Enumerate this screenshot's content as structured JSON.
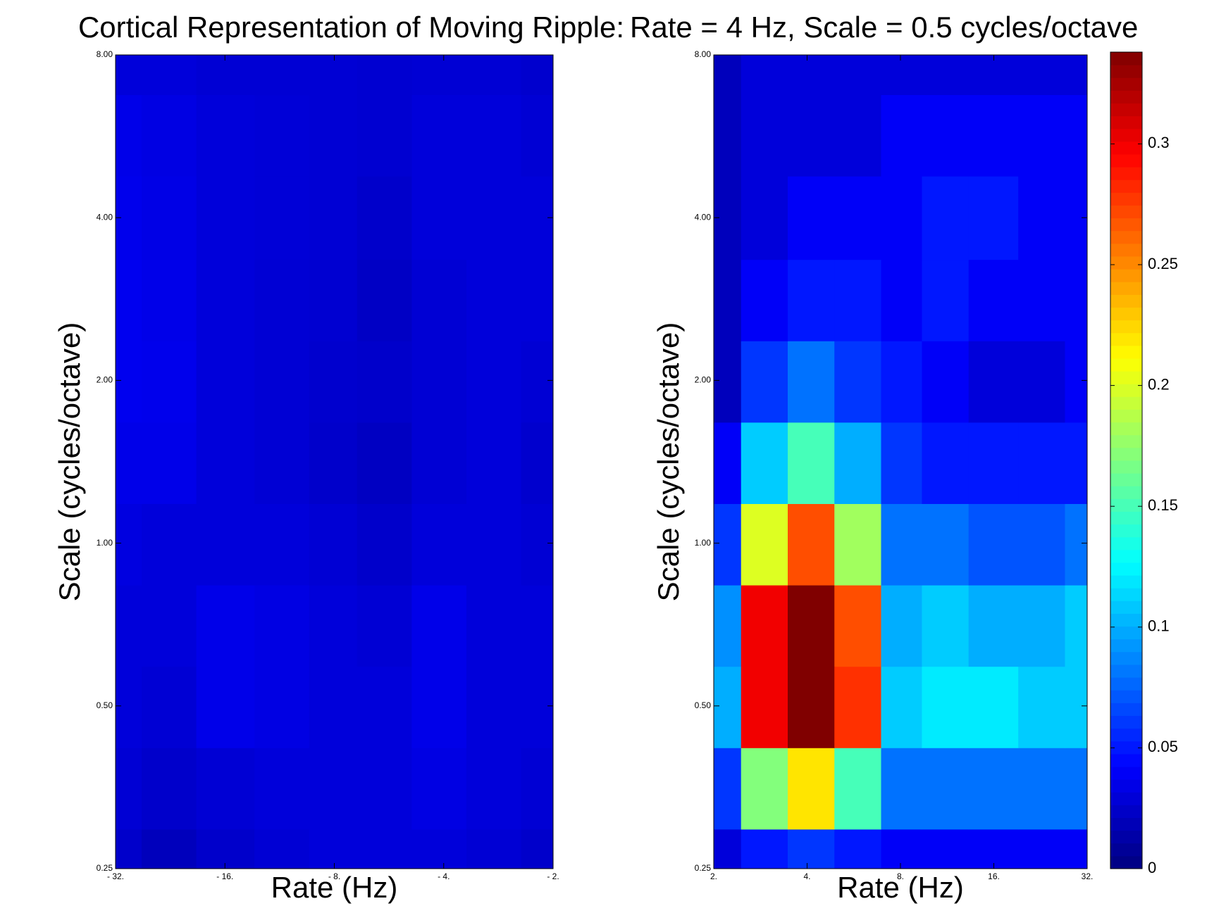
{
  "chart_data": [
    {
      "type": "heatmap",
      "title": "Cortical Representation of Moving Ripple:",
      "xlabel": "Rate (Hz)",
      "ylabel": "Scale (cycles/octave)",
      "xscale": "log",
      "yscale": "log",
      "xlim": [
        -32,
        -2
      ],
      "ylim": [
        0.25,
        8
      ],
      "xticks": [
        {
          "value": -32,
          "label": "- 32."
        },
        {
          "value": -16,
          "label": "- 16."
        },
        {
          "value": -8,
          "label": "- 8."
        },
        {
          "value": -4,
          "label": "- 4."
        },
        {
          "value": -2,
          "label": "- 2."
        }
      ],
      "yticks": [
        {
          "value": 0.25,
          "label": "0.25"
        },
        {
          "value": 0.5,
          "label": "0.50"
        },
        {
          "value": 1,
          "label": "1.00"
        },
        {
          "value": 2,
          "label": "2.00"
        },
        {
          "value": 4,
          "label": "4.00"
        },
        {
          "value": 8,
          "label": "8.00"
        }
      ],
      "x": [
        -32,
        -23,
        -16,
        -11,
        -8,
        -6,
        -4,
        -3,
        -2
      ],
      "y": [
        0.25,
        0.35,
        0.5,
        0.7,
        1,
        1.4,
        2,
        2.8,
        4,
        5.7,
        8
      ],
      "z": [
        [
          0.025,
          0.02,
          0.025,
          0.028,
          0.03,
          0.03,
          0.03,
          0.028,
          0.025
        ],
        [
          0.028,
          0.025,
          0.028,
          0.03,
          0.03,
          0.03,
          0.033,
          0.03,
          0.028
        ],
        [
          0.03,
          0.028,
          0.035,
          0.033,
          0.03,
          0.03,
          0.035,
          0.03,
          0.03
        ],
        [
          0.03,
          0.03,
          0.035,
          0.033,
          0.03,
          0.028,
          0.035,
          0.03,
          0.03
        ],
        [
          0.032,
          0.03,
          0.03,
          0.03,
          0.028,
          0.025,
          0.03,
          0.03,
          0.028
        ],
        [
          0.035,
          0.035,
          0.03,
          0.028,
          0.025,
          0.022,
          0.028,
          0.03,
          0.026
        ],
        [
          0.037,
          0.036,
          0.03,
          0.028,
          0.026,
          0.025,
          0.028,
          0.03,
          0.028
        ],
        [
          0.037,
          0.035,
          0.03,
          0.028,
          0.027,
          0.023,
          0.028,
          0.03,
          0.03
        ],
        [
          0.036,
          0.034,
          0.03,
          0.029,
          0.028,
          0.025,
          0.03,
          0.03,
          0.03
        ],
        [
          0.035,
          0.033,
          0.03,
          0.029,
          0.028,
          0.027,
          0.03,
          0.03,
          0.028
        ],
        [
          0.03,
          0.03,
          0.028,
          0.028,
          0.028,
          0.027,
          0.028,
          0.028,
          0.026
        ]
      ]
    },
    {
      "type": "heatmap",
      "title": "Rate = 4 Hz, Scale = 0.5 cycles/octave",
      "xlabel": "Rate (Hz)",
      "ylabel": "Scale (cycles/octave)",
      "xscale": "log",
      "yscale": "log",
      "xlim": [
        2,
        32
      ],
      "ylim": [
        0.25,
        8
      ],
      "xticks": [
        {
          "value": 2,
          "label": "2."
        },
        {
          "value": 4,
          "label": "4."
        },
        {
          "value": 8,
          "label": "8."
        },
        {
          "value": 16,
          "label": "16."
        },
        {
          "value": 32,
          "label": "32."
        }
      ],
      "yticks": [
        {
          "value": 0.25,
          "label": "0.25"
        },
        {
          "value": 0.5,
          "label": "0.50"
        },
        {
          "value": 1,
          "label": "1.00"
        },
        {
          "value": 2,
          "label": "2.00"
        },
        {
          "value": 4,
          "label": "4.00"
        },
        {
          "value": 8,
          "label": "8.00"
        }
      ],
      "x": [
        2,
        3,
        4,
        6,
        8,
        11,
        16,
        23,
        32
      ],
      "y": [
        0.25,
        0.35,
        0.5,
        0.7,
        1,
        1.4,
        2,
        2.8,
        4,
        5.7,
        8
      ],
      "z": [
        [
          0.03,
          0.05,
          0.06,
          0.05,
          0.04,
          0.04,
          0.04,
          0.04,
          0.04
        ],
        [
          0.06,
          0.17,
          0.22,
          0.15,
          0.08,
          0.08,
          0.08,
          0.08,
          0.08
        ],
        [
          0.1,
          0.3,
          0.36,
          0.28,
          0.11,
          0.12,
          0.12,
          0.11,
          0.11
        ],
        [
          0.09,
          0.3,
          0.36,
          0.27,
          0.1,
          0.11,
          0.1,
          0.1,
          0.11
        ],
        [
          0.06,
          0.2,
          0.27,
          0.18,
          0.08,
          0.08,
          0.07,
          0.07,
          0.08
        ],
        [
          0.04,
          0.11,
          0.15,
          0.1,
          0.06,
          0.05,
          0.05,
          0.05,
          0.05
        ],
        [
          0.02,
          0.06,
          0.08,
          0.06,
          0.05,
          0.04,
          0.03,
          0.03,
          0.04
        ],
        [
          0.02,
          0.04,
          0.05,
          0.05,
          0.04,
          0.05,
          0.04,
          0.04,
          0.04
        ],
        [
          0.02,
          0.03,
          0.04,
          0.04,
          0.04,
          0.05,
          0.05,
          0.04,
          0.04
        ],
        [
          0.02,
          0.03,
          0.03,
          0.03,
          0.04,
          0.04,
          0.04,
          0.04,
          0.04
        ],
        [
          0.02,
          0.03,
          0.03,
          0.03,
          0.03,
          0.03,
          0.03,
          0.03,
          0.03
        ]
      ],
      "colorbar": {
        "lim": [
          0,
          0.338
        ],
        "ticks": [
          0,
          0.05,
          0.1,
          0.15,
          0.2,
          0.25,
          0.3
        ]
      }
    }
  ]
}
